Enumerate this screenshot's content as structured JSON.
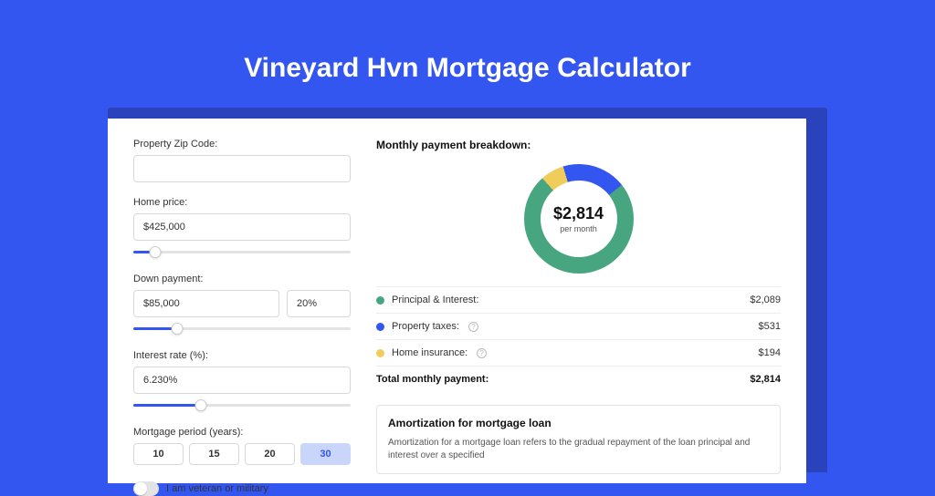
{
  "page": {
    "title": "Vineyard Hvn Mortgage Calculator",
    "bg_color": "#3456f0",
    "accent_color": "#3456f0",
    "card_shadow_color": "#2a43bd"
  },
  "form": {
    "zip": {
      "label": "Property Zip Code:",
      "value": ""
    },
    "home_price": {
      "label": "Home price:",
      "value": "$425,000",
      "slider_pct": 10
    },
    "down_payment": {
      "label": "Down payment:",
      "value": "$85,000",
      "pct": "20%",
      "slider_pct": 20
    },
    "interest_rate": {
      "label": "Interest rate (%):",
      "value": "6.230%",
      "slider_pct": 31
    },
    "period": {
      "label": "Mortgage period (years):",
      "options": [
        "10",
        "15",
        "20",
        "30"
      ],
      "selected": "30"
    },
    "veteran": {
      "label": "I am veteran or military",
      "checked": false
    }
  },
  "breakdown": {
    "title": "Monthly payment breakdown:",
    "donut": {
      "amount": "$2,814",
      "sub": "per month",
      "segments": [
        {
          "label": "Principal & Interest",
          "value": 2089,
          "color": "#47a67f",
          "pct": 74
        },
        {
          "label": "Property taxes",
          "value": 531,
          "color": "#3456f0",
          "pct": 19
        },
        {
          "label": "Home insurance",
          "value": 194,
          "color": "#f0cc5a",
          "pct": 7
        }
      ]
    },
    "rows": [
      {
        "label": "Principal & Interest:",
        "value": "$2,089",
        "color": "#47a67f",
        "info": false
      },
      {
        "label": "Property taxes:",
        "value": "$531",
        "color": "#3456f0",
        "info": true
      },
      {
        "label": "Home insurance:",
        "value": "$194",
        "color": "#f0cc5a",
        "info": true
      }
    ],
    "total": {
      "label": "Total monthly payment:",
      "value": "$2,814"
    }
  },
  "amortization": {
    "title": "Amortization for mortgage loan",
    "text": "Amortization for a mortgage loan refers to the gradual repayment of the loan principal and interest over a specified"
  }
}
